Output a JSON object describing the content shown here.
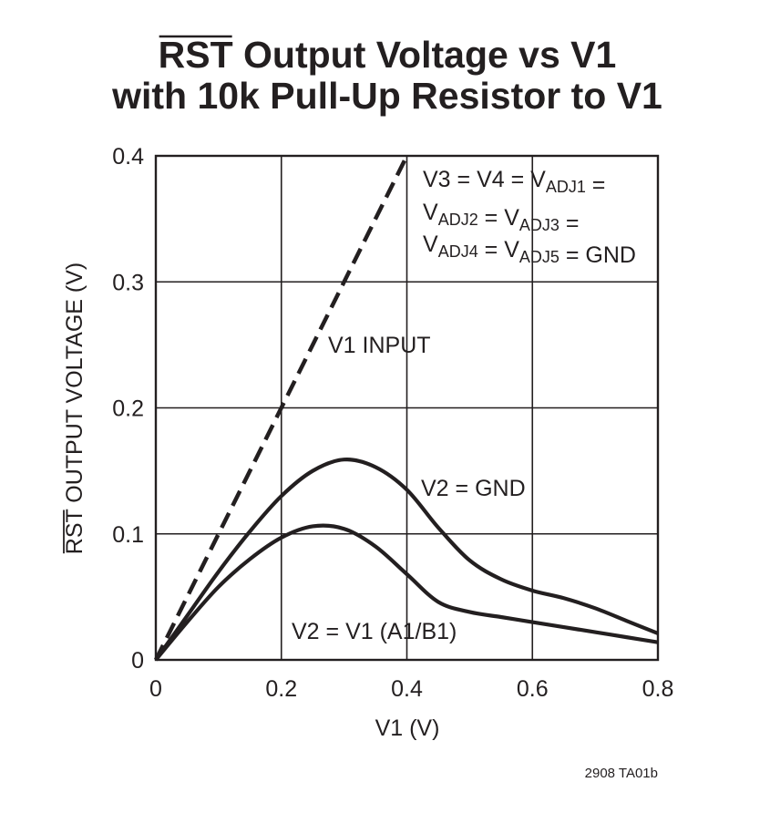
{
  "chart_data": {
    "type": "line",
    "title": {
      "overbar_text": "RST",
      "line1_rest": " Output Voltage vs V1",
      "line2": "with 10k Pull-Up Resistor to V1"
    },
    "xlabel": "V1 (V)",
    "ylabel": {
      "overbar_text": "RST",
      "rest": " OUTPUT VOLTAGE (V)"
    },
    "xlim": [
      0,
      0.8
    ],
    "ylim": [
      0,
      0.4
    ],
    "x_ticks": [
      0,
      0.2,
      0.4,
      0.6,
      0.8
    ],
    "x_tick_labels": [
      "0",
      "0.2",
      "0.4",
      "0.6",
      "0.8"
    ],
    "y_ticks": [
      0,
      0.1,
      0.2,
      0.3,
      0.4
    ],
    "y_tick_labels": [
      "0",
      "0.1",
      "0.2",
      "0.3",
      "0.4"
    ],
    "grid": true,
    "series": [
      {
        "name": "V1 INPUT",
        "style": "dashed",
        "x": [
          0,
          0.4
        ],
        "y": [
          0,
          0.4
        ]
      },
      {
        "name": "V2 = GND",
        "style": "solid",
        "x": [
          0,
          0.05,
          0.1,
          0.15,
          0.2,
          0.25,
          0.3,
          0.35,
          0.4,
          0.45,
          0.5,
          0.55,
          0.6,
          0.65,
          0.7,
          0.75,
          0.8
        ],
        "y": [
          0,
          0.035,
          0.07,
          0.102,
          0.13,
          0.15,
          0.159,
          0.153,
          0.135,
          0.105,
          0.079,
          0.064,
          0.055,
          0.049,
          0.041,
          0.031,
          0.021
        ]
      },
      {
        "name": "V2 = V1 (A1/B1)",
        "style": "solid",
        "x": [
          0,
          0.05,
          0.1,
          0.15,
          0.2,
          0.25,
          0.3,
          0.35,
          0.4,
          0.45,
          0.5,
          0.55,
          0.6,
          0.65,
          0.7,
          0.75,
          0.8
        ],
        "y": [
          0,
          0.03,
          0.058,
          0.08,
          0.097,
          0.106,
          0.104,
          0.09,
          0.068,
          0.046,
          0.038,
          0.034,
          0.03,
          0.026,
          0.022,
          0.018,
          0.014
        ]
      }
    ],
    "annotations": {
      "conditions": {
        "line1": [
          {
            "t": "V3 = V4 = V"
          },
          {
            "t": "ADJ1",
            "sub": true
          },
          {
            "t": " ="
          }
        ],
        "line2": [
          {
            "t": "V"
          },
          {
            "t": "ADJ2",
            "sub": true
          },
          {
            "t": " = V"
          },
          {
            "t": "ADJ3",
            "sub": true
          },
          {
            "t": " ="
          }
        ],
        "line3": [
          {
            "t": "V"
          },
          {
            "t": "ADJ4",
            "sub": true
          },
          {
            "t": " = V"
          },
          {
            "t": "ADJ5",
            "sub": true
          },
          {
            "t": " = GND"
          }
        ]
      },
      "v1_input_label": "V1 INPUT",
      "v2_gnd_label": "V2 = GND",
      "v2_v1_label": "V2 = V1 (A1/B1)"
    },
    "figure_code": "2908 TA01b",
    "line_color": "#231f20"
  }
}
